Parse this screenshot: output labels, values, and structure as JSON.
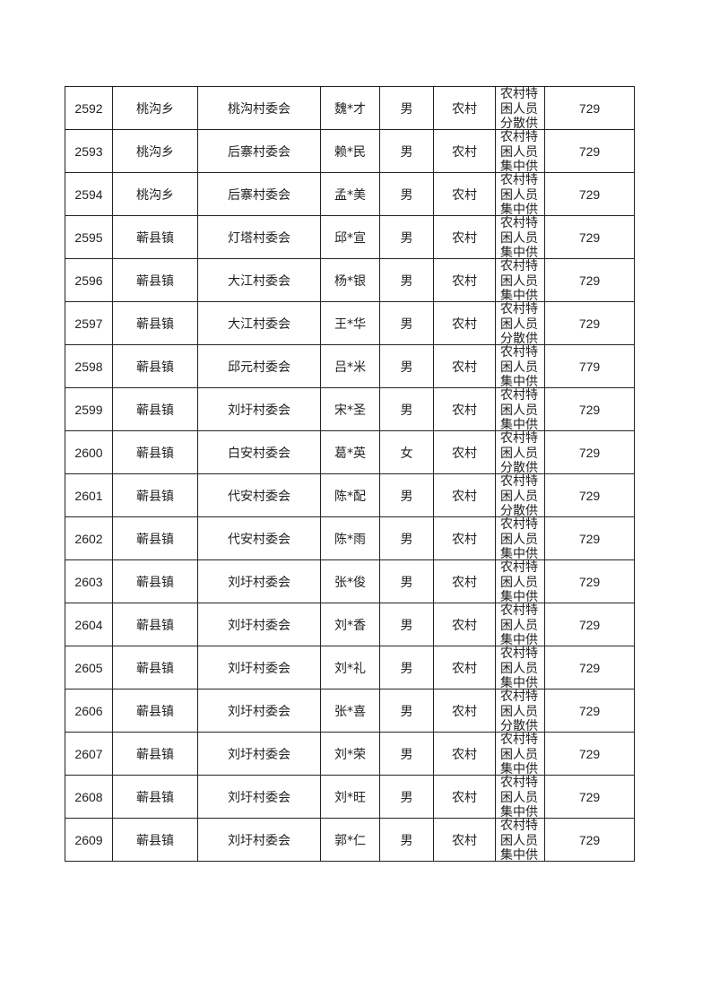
{
  "rows": [
    {
      "id": "2592",
      "town": "桃沟乡",
      "village": "桃沟村委会",
      "name": "魏*才",
      "gender": "男",
      "area": "农村",
      "type": "农村特困人员分散供",
      "amount": "729"
    },
    {
      "id": "2593",
      "town": "桃沟乡",
      "village": "后寨村委会",
      "name": "赖*民",
      "gender": "男",
      "area": "农村",
      "type": "农村特困人员集中供",
      "amount": "729"
    },
    {
      "id": "2594",
      "town": "桃沟乡",
      "village": "后寨村委会",
      "name": "孟*美",
      "gender": "男",
      "area": "农村",
      "type": "农村特困人员集中供",
      "amount": "729"
    },
    {
      "id": "2595",
      "town": "蕲县镇",
      "village": "灯塔村委会",
      "name": "邱*宣",
      "gender": "男",
      "area": "农村",
      "type": "农村特困人员集中供",
      "amount": "729"
    },
    {
      "id": "2596",
      "town": "蕲县镇",
      "village": "大江村委会",
      "name": "杨*银",
      "gender": "男",
      "area": "农村",
      "type": "农村特困人员集中供",
      "amount": "729"
    },
    {
      "id": "2597",
      "town": "蕲县镇",
      "village": "大江村委会",
      "name": "王*华",
      "gender": "男",
      "area": "农村",
      "type": "农村特困人员分散供",
      "amount": "729"
    },
    {
      "id": "2598",
      "town": "蕲县镇",
      "village": "邱元村委会",
      "name": "吕*米",
      "gender": "男",
      "area": "农村",
      "type": "农村特困人员集中供",
      "amount": "779"
    },
    {
      "id": "2599",
      "town": "蕲县镇",
      "village": "刘圩村委会",
      "name": "宋*圣",
      "gender": "男",
      "area": "农村",
      "type": "农村特困人员集中供",
      "amount": "729"
    },
    {
      "id": "2600",
      "town": "蕲县镇",
      "village": "白安村委会",
      "name": "葛*英",
      "gender": "女",
      "area": "农村",
      "type": "农村特困人员分散供",
      "amount": "729"
    },
    {
      "id": "2601",
      "town": "蕲县镇",
      "village": "代安村委会",
      "name": "陈*配",
      "gender": "男",
      "area": "农村",
      "type": "农村特困人员分散供",
      "amount": "729"
    },
    {
      "id": "2602",
      "town": "蕲县镇",
      "village": "代安村委会",
      "name": "陈*雨",
      "gender": "男",
      "area": "农村",
      "type": "农村特困人员集中供",
      "amount": "729"
    },
    {
      "id": "2603",
      "town": "蕲县镇",
      "village": "刘圩村委会",
      "name": "张*俊",
      "gender": "男",
      "area": "农村",
      "type": "农村特困人员集中供",
      "amount": "729"
    },
    {
      "id": "2604",
      "town": "蕲县镇",
      "village": "刘圩村委会",
      "name": "刘*香",
      "gender": "男",
      "area": "农村",
      "type": "农村特困人员集中供",
      "amount": "729"
    },
    {
      "id": "2605",
      "town": "蕲县镇",
      "village": "刘圩村委会",
      "name": "刘*礼",
      "gender": "男",
      "area": "农村",
      "type": "农村特困人员集中供",
      "amount": "729"
    },
    {
      "id": "2606",
      "town": "蕲县镇",
      "village": "刘圩村委会",
      "name": "张*喜",
      "gender": "男",
      "area": "农村",
      "type": "农村特困人员分散供",
      "amount": "729"
    },
    {
      "id": "2607",
      "town": "蕲县镇",
      "village": "刘圩村委会",
      "name": "刘*荣",
      "gender": "男",
      "area": "农村",
      "type": "农村特困人员集中供",
      "amount": "729"
    },
    {
      "id": "2608",
      "town": "蕲县镇",
      "village": "刘圩村委会",
      "name": "刘*旺",
      "gender": "男",
      "area": "农村",
      "type": "农村特困人员集中供",
      "amount": "729"
    },
    {
      "id": "2609",
      "town": "蕲县镇",
      "village": "刘圩村委会",
      "name": "郭*仁",
      "gender": "男",
      "area": "农村",
      "type": "农村特困人员集中供",
      "amount": "729"
    }
  ]
}
